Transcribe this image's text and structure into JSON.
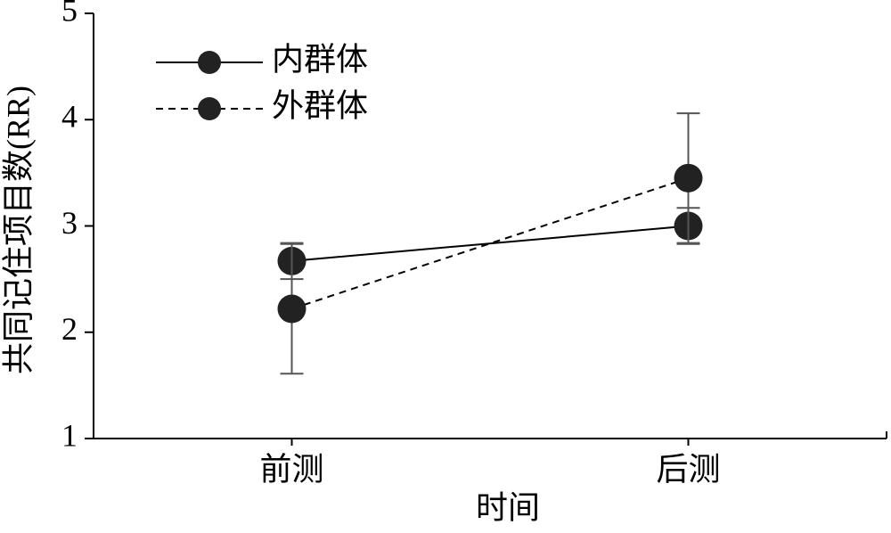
{
  "chart_data": {
    "type": "line",
    "y_label": "共同记住项目数(RR)",
    "x_label": "时间",
    "categories": [
      "前测",
      "后测"
    ],
    "series": [
      {
        "name": "内群体",
        "color": "#000000",
        "linestyle": "solid",
        "values": [
          2.67,
          3.0
        ],
        "errors": [
          0.17,
          0.17
        ]
      },
      {
        "name": "外群体",
        "color": "#000000",
        "linestyle": "dashed",
        "values": [
          2.22,
          3.45
        ],
        "errors": [
          0.61,
          0.61
        ]
      }
    ],
    "error_color": "#555555",
    "ylim": [
      1,
      5
    ],
    "yticks": [
      1,
      2,
      3,
      4,
      5
    ],
    "legend": "upper left"
  }
}
